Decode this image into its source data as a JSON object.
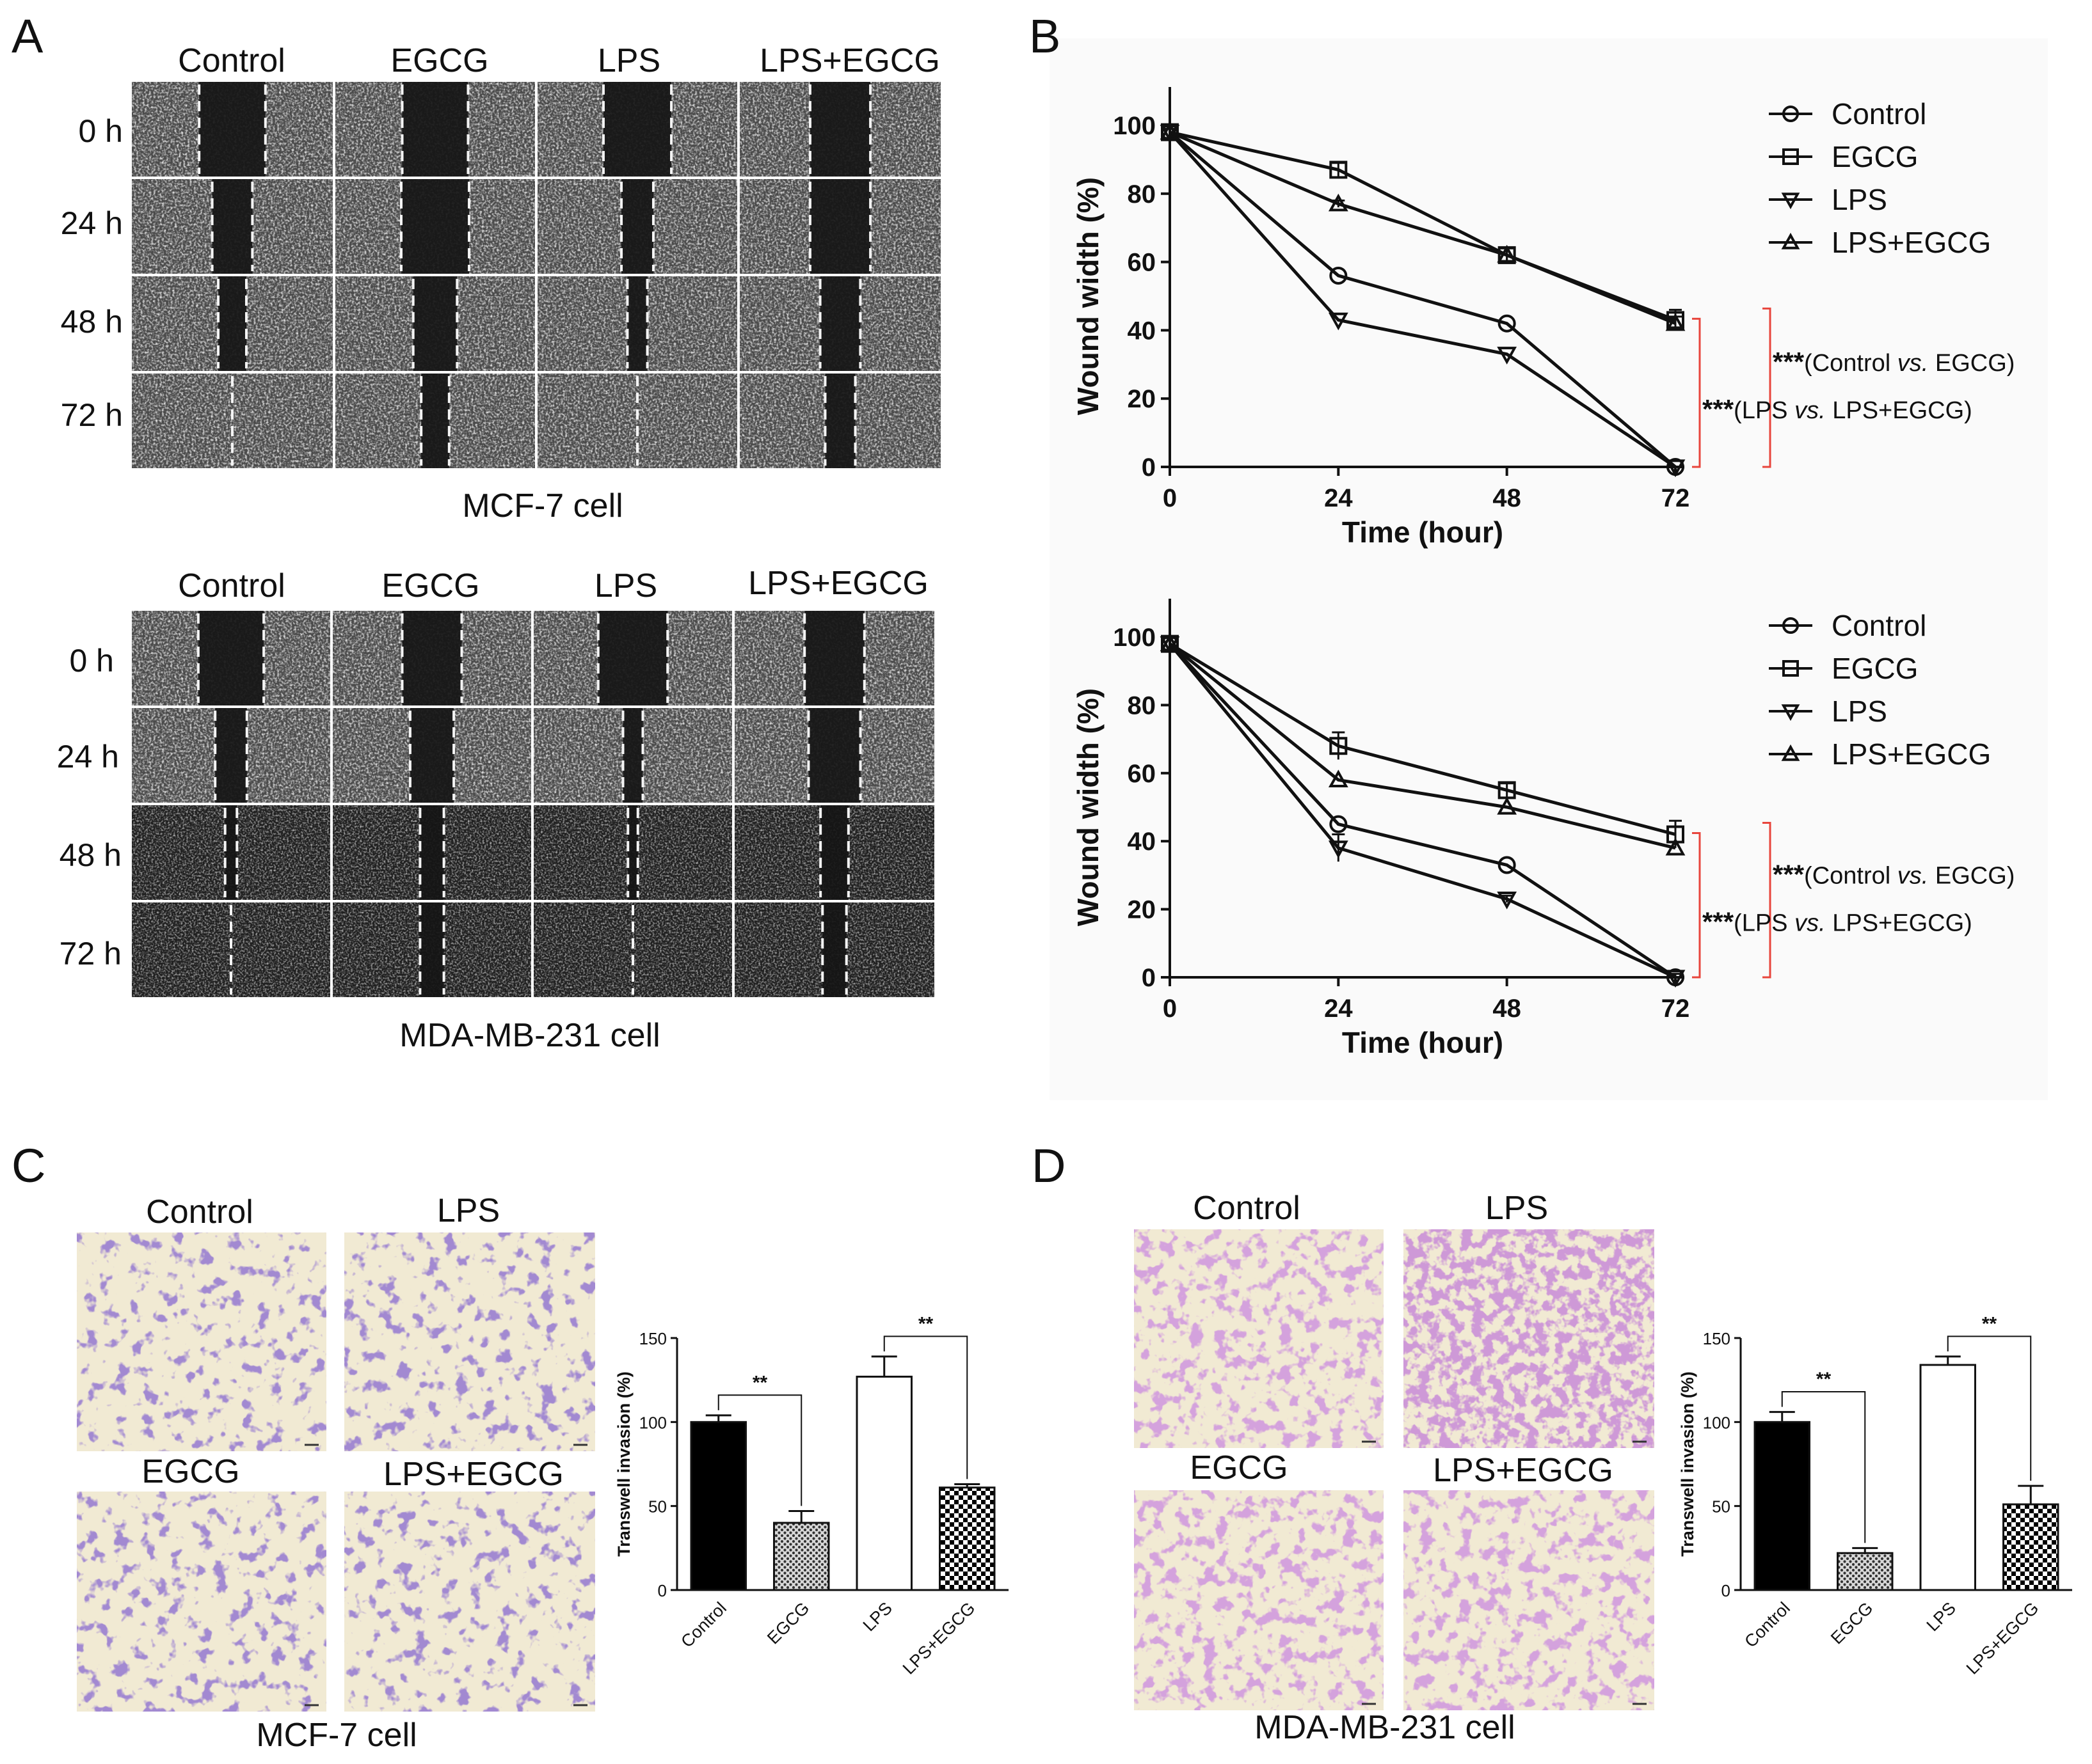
{
  "panels": {
    "A": {
      "letter": "A",
      "top": {
        "headers": [
          "Control",
          "EGCG",
          "LPS",
          "LPS+EGCG"
        ],
        "rows": [
          "0 h",
          "24 h",
          "48 h",
          "72 h"
        ],
        "caption": "MCF-7 cell"
      },
      "bottom": {
        "headers": [
          "Control",
          "EGCG",
          "LPS",
          "LPS+EGCG"
        ],
        "rows": [
          "0 h",
          "24 h",
          "48 h",
          "72 h"
        ],
        "caption": "MDA-MB-231 cell"
      }
    },
    "B": {
      "letter": "B"
    },
    "C": {
      "letter": "C",
      "labels": [
        "Control",
        "LPS",
        "EGCG",
        "LPS+EGCG"
      ],
      "caption": "MCF-7 cell"
    },
    "D": {
      "letter": "D",
      "labels": [
        "Control",
        "LPS",
        "EGCG",
        "LPS+EGCG"
      ],
      "caption": "MDA-MB-231 cell"
    }
  },
  "colors": {
    "micrograph_dark": "#2e2e2e",
    "micrograph_light": "#7a7a7a",
    "stain_bg": "#f1ead3",
    "stain_cell": "#5b3fa2",
    "stain_cell_pink": "#b062b6",
    "sig_bracket": "#e8453c"
  },
  "chart_data": [
    {
      "id": "B-top",
      "type": "line",
      "x": [
        0,
        24,
        48,
        72
      ],
      "xticks": [
        "0",
        "24",
        "48",
        "72"
      ],
      "xlabel": "Time (hour)",
      "ylabel": "Wound width (%)",
      "yticks": [
        "0",
        "20",
        "40",
        "60",
        "80",
        "100"
      ],
      "xlim": [
        0,
        72
      ],
      "ylim": [
        0,
        100
      ],
      "series": [
        {
          "name": "Control",
          "marker": "circle",
          "values": [
            98,
            56,
            42,
            0
          ]
        },
        {
          "name": "EGCG",
          "marker": "square",
          "values": [
            98,
            87,
            62,
            43
          ]
        },
        {
          "name": "LPS",
          "marker": "triangle-down",
          "values": [
            98,
            43,
            33,
            0
          ]
        },
        {
          "name": "LPS+EGCG",
          "marker": "triangle-up",
          "values": [
            98,
            77,
            62,
            42
          ]
        }
      ],
      "errors": {
        "EGCG": [
          1,
          2,
          2,
          3
        ],
        "LPS+EGCG": [
          1,
          1,
          2,
          2
        ]
      },
      "annotations": [
        {
          "stars": "***",
          "pre": "(Control ",
          "vs": "vs.",
          "post": " EGCG)"
        },
        {
          "stars": "***",
          "pre": "(LPS ",
          "vs": "vs.",
          "post": " LPS+EGCG)"
        }
      ],
      "legend": "top-right"
    },
    {
      "id": "B-bottom",
      "type": "line",
      "x": [
        0,
        24,
        48,
        72
      ],
      "xticks": [
        "0",
        "24",
        "48",
        "72"
      ],
      "xlabel": "Time (hour)",
      "ylabel": "Wound width (%)",
      "yticks": [
        "0",
        "20",
        "40",
        "60",
        "80",
        "100"
      ],
      "xlim": [
        0,
        72
      ],
      "ylim": [
        0,
        100
      ],
      "series": [
        {
          "name": "Control",
          "marker": "circle",
          "values": [
            98,
            45,
            33,
            0
          ]
        },
        {
          "name": "EGCG",
          "marker": "square",
          "values": [
            98,
            68,
            55,
            42
          ]
        },
        {
          "name": "LPS",
          "marker": "triangle-down",
          "values": [
            98,
            38,
            23,
            0
          ]
        },
        {
          "name": "LPS+EGCG",
          "marker": "triangle-up",
          "values": [
            98,
            58,
            50,
            38
          ]
        }
      ],
      "errors": {
        "EGCG": [
          2,
          4,
          2,
          4
        ],
        "LPS": [
          2,
          4,
          1,
          1
        ]
      },
      "annotations": [
        {
          "stars": "***",
          "pre": "(Control ",
          "vs": "vs.",
          "post": " EGCG)"
        },
        {
          "stars": "***",
          "pre": "(LPS ",
          "vs": "vs.",
          "post": " LPS+EGCG)"
        }
      ],
      "legend": "top-right"
    },
    {
      "id": "C-bar",
      "type": "bar",
      "categories": [
        "Control",
        "EGCG",
        "LPS",
        "LPS+EGCG"
      ],
      "values": [
        100,
        40,
        127,
        61
      ],
      "errors": [
        4,
        7,
        12,
        2
      ],
      "fills": [
        "solid",
        "grey-dots",
        "white",
        "checker"
      ],
      "ylabel": "Transwell invasion (%)",
      "yticks": [
        "0",
        "50",
        "100",
        "150"
      ],
      "ylim": [
        0,
        150
      ],
      "significance": [
        {
          "from": 0,
          "to": 1,
          "label": "**"
        },
        {
          "from": 2,
          "to": 3,
          "label": "**"
        }
      ]
    },
    {
      "id": "D-bar",
      "type": "bar",
      "categories": [
        "Control",
        "EGCG",
        "LPS",
        "LPS+EGCG"
      ],
      "values": [
        100,
        22,
        134,
        51
      ],
      "errors": [
        6,
        3,
        5,
        11
      ],
      "fills": [
        "solid",
        "grey-dots",
        "white",
        "checker"
      ],
      "ylabel": "Transwell invasion (%)",
      "yticks": [
        "0",
        "50",
        "100",
        "150"
      ],
      "ylim": [
        0,
        150
      ],
      "significance": [
        {
          "from": 0,
          "to": 1,
          "label": "**"
        },
        {
          "from": 2,
          "to": 3,
          "label": "**"
        }
      ]
    }
  ]
}
